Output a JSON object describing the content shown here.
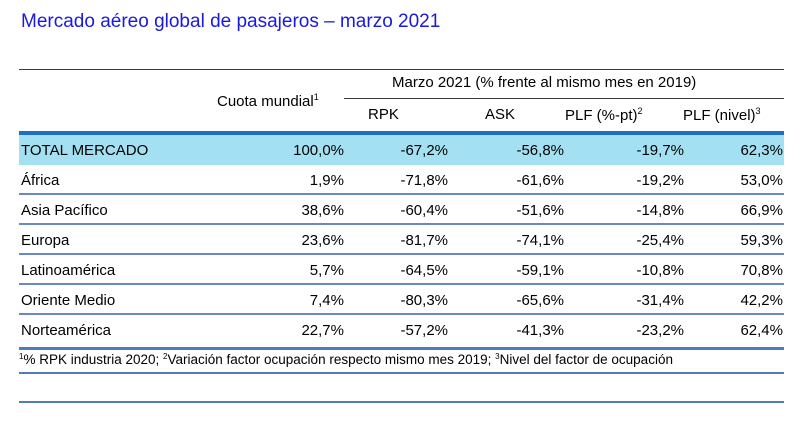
{
  "title": "Mercado aéreo global de pasajeros – marzo 2021",
  "header": {
    "cuota": "Cuota mundial",
    "cuota_sup": "1",
    "group": "Marzo 2021 (% frente al mismo mes en 2019)",
    "rpk": "RPK",
    "ask": "ASK",
    "plf_pt": "PLF (%-pt)",
    "plf_pt_sup": "2",
    "plf_nivel": "PLF (nivel)",
    "plf_nivel_sup": "3"
  },
  "rows": [
    {
      "name": "TOTAL MERCADO",
      "cuota": "100,0%",
      "rpk": "-67,2%",
      "ask": "-56,8%",
      "plf_pt": "-19,7%",
      "plf_nivel": "62,3%"
    },
    {
      "name": "África",
      "cuota": "1,9%",
      "rpk": "-71,8%",
      "ask": "-61,6%",
      "plf_pt": "-19,2%",
      "plf_nivel": "53,0%"
    },
    {
      "name": "Asia Pacífico",
      "cuota": "38,6%",
      "rpk": "-60,4%",
      "ask": "-51,6%",
      "plf_pt": "-14,8%",
      "plf_nivel": "66,9%"
    },
    {
      "name": "Europa",
      "cuota": "23,6%",
      "rpk": "-81,7%",
      "ask": "-74,1%",
      "plf_pt": "-25,4%",
      "plf_nivel": "59,3%"
    },
    {
      "name": "Latinoamérica",
      "cuota": "5,7%",
      "rpk": "-64,5%",
      "ask": "-59,1%",
      "plf_pt": "-10,8%",
      "plf_nivel": "70,8%"
    },
    {
      "name": "Oriente Medio",
      "cuota": "7,4%",
      "rpk": "-80,3%",
      "ask": "-65,6%",
      "plf_pt": "-31,4%",
      "plf_nivel": "42,2%"
    },
    {
      "name": "Norteamérica",
      "cuota": "22,7%",
      "rpk": "-57,2%",
      "ask": "-41,3%",
      "plf_pt": "-23,2%",
      "plf_nivel": "62,4%"
    }
  ],
  "footnote": {
    "sup1": "1",
    "text1": "% RPK industria 2020; ",
    "sup2": "2",
    "text2": "Variación factor ocupación respecto mismo mes 2019; ",
    "sup3": "3",
    "text3": "Nivel del factor de ocupación"
  },
  "colors": {
    "title": "#1a1adc",
    "total_row_bg": "#a3e1f2",
    "header_rule": "#1f6fc5",
    "row_rule": "#6a88c6"
  }
}
